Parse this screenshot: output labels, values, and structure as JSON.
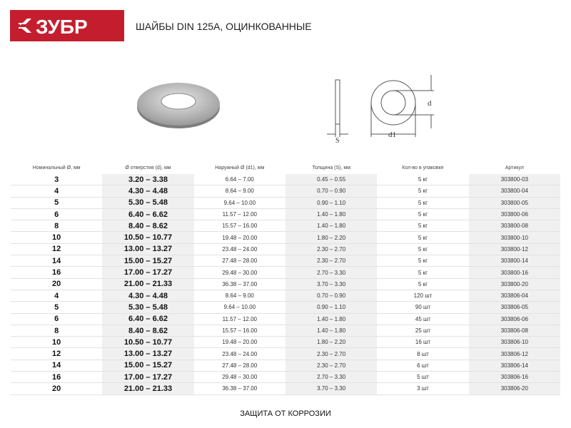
{
  "brand": {
    "logo_text": "ЗУБР",
    "color": "#c41e2e"
  },
  "title": "ШАЙБЫ DIN 125A, ОЦИНКОВАННЫЕ",
  "drawing": {
    "label_s": "S",
    "label_d": "d",
    "label_d1": "d1"
  },
  "table": {
    "headers": [
      "Номинальный Ø, мм",
      "Ø отверстия (d), мм",
      "Наружный Ø (d1), мм",
      "Толщина (S), мм",
      "Кол-во в упаковке",
      "Артикул"
    ],
    "rows": [
      [
        "3",
        "3.20 – 3.38",
        "6.64 – 7.00",
        "0.45 – 0.55",
        "5 кг",
        "303800-03"
      ],
      [
        "4",
        "4.30 – 4.48",
        "8.64 – 9.00",
        "0.70 – 0.90",
        "5 кг",
        "303800-04"
      ],
      [
        "5",
        "5.30 – 5.48",
        "9.64 – 10.00",
        "0.90 – 1.10",
        "5 кг",
        "303800-05"
      ],
      [
        "6",
        "6.40 – 6.62",
        "11.57 – 12.00",
        "1.40 – 1.80",
        "5 кг",
        "303800-06"
      ],
      [
        "8",
        "8.40 – 8.62",
        "15.57 – 16.00",
        "1.40 – 1.80",
        "5 кг",
        "303800-08"
      ],
      [
        "10",
        "10.50 – 10.77",
        "19.48 – 20.00",
        "1.80 – 2.20",
        "5 кг",
        "303800-10"
      ],
      [
        "12",
        "13.00 – 13.27",
        "23.48 – 24.00",
        "2.30 – 2.70",
        "5 кг",
        "303800-12"
      ],
      [
        "14",
        "15.00 – 15.27",
        "27.48 – 28.00",
        "2.30 – 2.70",
        "5 кг",
        "303800-14"
      ],
      [
        "16",
        "17.00 – 17.27",
        "29.48 – 30.00",
        "2.70 – 3.30",
        "5 кг",
        "303800-16"
      ],
      [
        "20",
        "21.00 – 21.33",
        "36.38 – 37.00",
        "3.70 – 3.30",
        "5 кг",
        "303800-20"
      ],
      [
        "4",
        "4.30 – 4.48",
        "8.64 – 9.00",
        "0.70 – 0.90",
        "120 шт",
        "303806-04"
      ],
      [
        "5",
        "5.30 – 5.48",
        "9.64 – 10.00",
        "0.90 – 1.10",
        "90 шт",
        "303806-05"
      ],
      [
        "6",
        "6.40 – 6.62",
        "11.57 – 12.00",
        "1.40 – 1.80",
        "45 шт",
        "303806-06"
      ],
      [
        "8",
        "8.40 – 8.62",
        "15.57 – 16.00",
        "1.40 – 1.80",
        "25 шт",
        "303806-08"
      ],
      [
        "10",
        "10.50 – 10.77",
        "19.48 – 20.00",
        "1.80 – 2.20",
        "16 шт",
        "303806-10"
      ],
      [
        "12",
        "13.00 – 13.27",
        "23.48 – 24.00",
        "2.30 – 2.70",
        "8 шт",
        "303806-12"
      ],
      [
        "14",
        "15.00 – 15.27",
        "27.48 – 28.00",
        "2.30 – 2.70",
        "6 шт",
        "303806-14"
      ],
      [
        "16",
        "17.00 – 17.27",
        "29.48 – 30.00",
        "2.70 – 3.30",
        "5 шт",
        "303806-16"
      ],
      [
        "20",
        "21.00 – 21.33",
        "36.38 – 37.00",
        "3.70 – 3.30",
        "3 шт",
        "303806-20"
      ]
    ]
  },
  "footer": "ЗАЩИТА ОТ КОРРОЗИИ"
}
